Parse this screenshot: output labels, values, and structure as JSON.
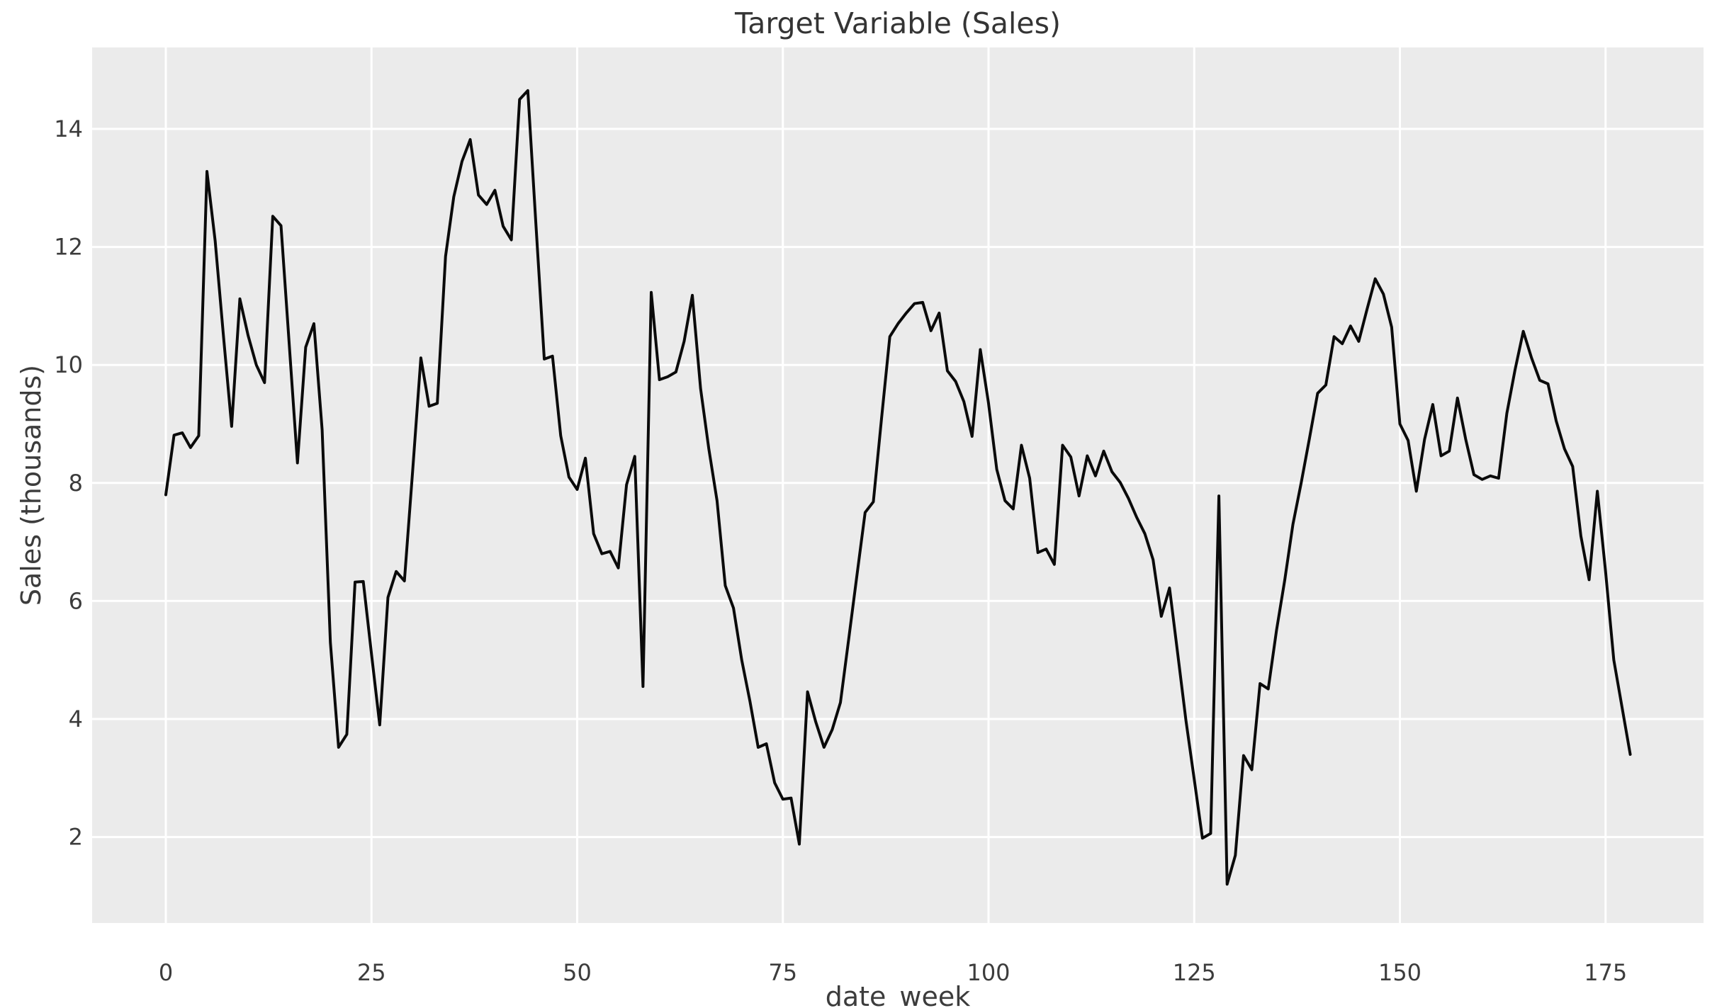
{
  "figure": {
    "background": "#ffffff"
  },
  "chart_data": {
    "type": "line",
    "title": "Target Variable (Sales)",
    "xlabel": "date_week",
    "ylabel": "Sales (thousands)",
    "legend": "none",
    "grid": true,
    "style": {
      "axes_bg": "#ebebeb",
      "grid_color": "#ffffff",
      "line_color": "#0a0a0a",
      "text_color": "#3c3c3c",
      "line_width": 4
    },
    "x_ticks": [
      0,
      25,
      50,
      75,
      100,
      125,
      150,
      175
    ],
    "y_ticks": [
      2,
      4,
      6,
      8,
      10,
      12,
      14
    ],
    "xlim": [
      -8.9,
      186.9
    ],
    "ylim": [
      0.53,
      15.35
    ],
    "series": [
      {
        "name": "Sales",
        "x_start": 0,
        "x_step": 1,
        "values": [
          7.8,
          8.81,
          8.85,
          8.6,
          8.8,
          13.28,
          12.1,
          10.5,
          8.96,
          11.12,
          10.5,
          10.0,
          9.7,
          12.52,
          12.36,
          10.35,
          8.34,
          10.3,
          10.7,
          8.9,
          5.3,
          3.52,
          3.74,
          6.32,
          6.33,
          5.1,
          3.9,
          6.06,
          6.5,
          6.34,
          8.2,
          10.12,
          9.3,
          9.35,
          11.84,
          12.85,
          13.45,
          13.82,
          12.88,
          12.72,
          12.96,
          12.35,
          12.12,
          14.5,
          14.65,
          12.35,
          10.1,
          10.15,
          8.8,
          8.1,
          7.89,
          8.42,
          7.14,
          6.8,
          6.84,
          6.56,
          7.97,
          8.45,
          4.55,
          11.23,
          9.75,
          9.8,
          9.88,
          10.4,
          11.18,
          9.6,
          8.58,
          7.7,
          6.26,
          5.88,
          5.0,
          4.3,
          3.52,
          3.58,
          2.92,
          2.64,
          2.66,
          1.88,
          4.46,
          3.95,
          3.52,
          3.82,
          4.28,
          5.35,
          6.43,
          7.5,
          7.68,
          9.1,
          10.48,
          10.7,
          10.88,
          11.04,
          11.06,
          10.58,
          10.88,
          9.9,
          9.72,
          9.38,
          8.79,
          10.26,
          9.35,
          8.23,
          7.7,
          7.56,
          8.64,
          8.08,
          6.82,
          6.88,
          6.62,
          8.64,
          8.44,
          7.78,
          8.46,
          8.12,
          8.54,
          8.19,
          8.01,
          7.74,
          7.42,
          7.14,
          6.7,
          5.74,
          6.22,
          5.1,
          3.97,
          2.98,
          1.98,
          2.06,
          7.78,
          1.2,
          1.69,
          3.38,
          3.14,
          4.6,
          4.51,
          5.5,
          6.35,
          7.3,
          8.0,
          8.75,
          9.52,
          9.66,
          10.48,
          10.36,
          10.66,
          10.4,
          10.94,
          11.46,
          11.2,
          10.64,
          9.0,
          8.72,
          7.86,
          8.74,
          9.33,
          8.46,
          8.54,
          9.44,
          8.74,
          8.14,
          8.06,
          8.12,
          8.08,
          9.18,
          9.92,
          10.57,
          10.12,
          9.74,
          9.68,
          9.05,
          8.58,
          8.28,
          7.1,
          6.36,
          7.86,
          6.5,
          5.0,
          4.2,
          3.4
        ]
      }
    ]
  }
}
